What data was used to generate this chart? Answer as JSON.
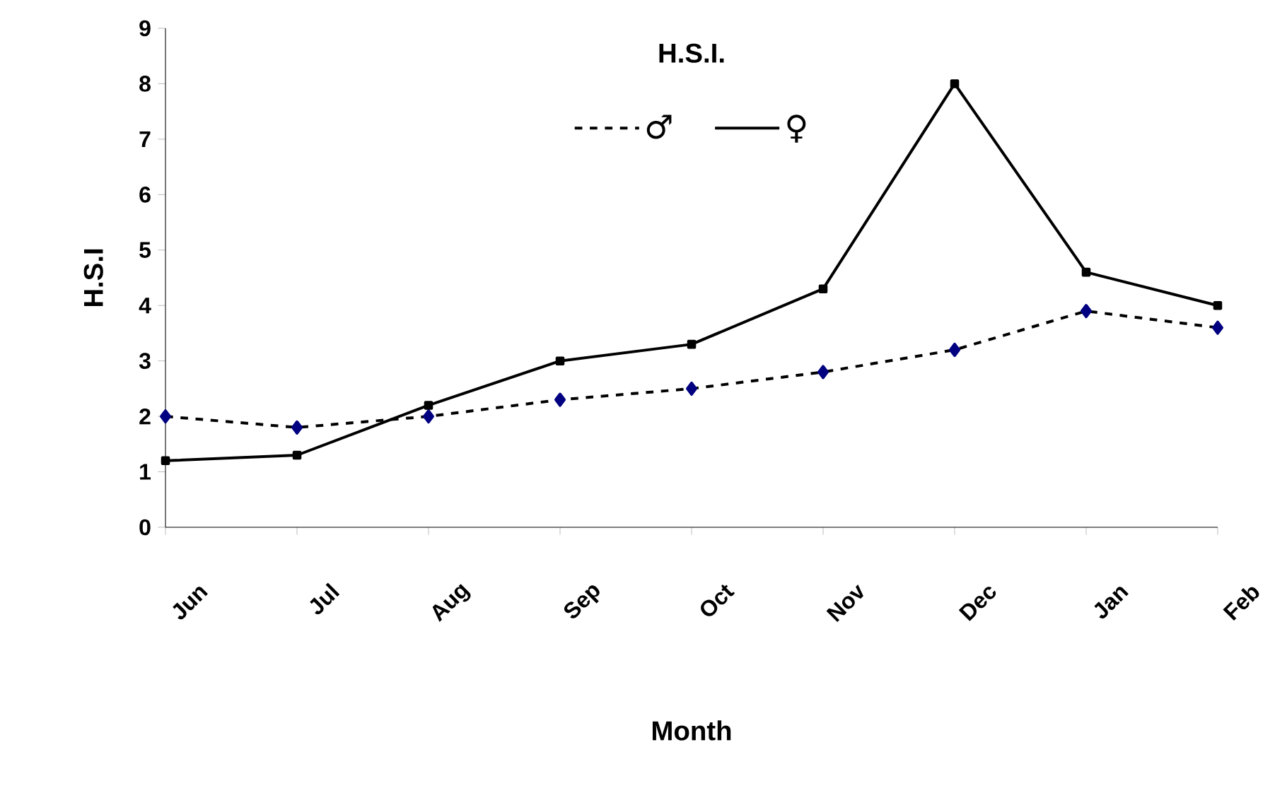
{
  "chart_data": {
    "type": "line",
    "title": "H.S.I.",
    "xlabel": "Month",
    "ylabel": "H.S.I",
    "categories": [
      "Jun",
      "Jul",
      "Aug",
      "Sep",
      "Oct",
      "Nov",
      "Dec",
      "Jan",
      "Feb"
    ],
    "ylim": [
      0,
      9
    ],
    "yticks": [
      0,
      1,
      2,
      3,
      4,
      5,
      6,
      7,
      8,
      9
    ],
    "grid": false,
    "legend": "top",
    "series": [
      {
        "name": "♂",
        "color": "#000080",
        "marker": "diamond",
        "line_style": "dashed",
        "values": [
          2.0,
          1.8,
          2.0,
          2.3,
          2.5,
          2.8,
          3.2,
          3.9,
          3.6
        ]
      },
      {
        "name": "♀",
        "color": "#000000",
        "marker": "square",
        "line_style": "solid",
        "values": [
          1.2,
          1.3,
          2.2,
          3.0,
          3.3,
          4.3,
          8.0,
          4.6,
          4.0
        ]
      }
    ]
  }
}
